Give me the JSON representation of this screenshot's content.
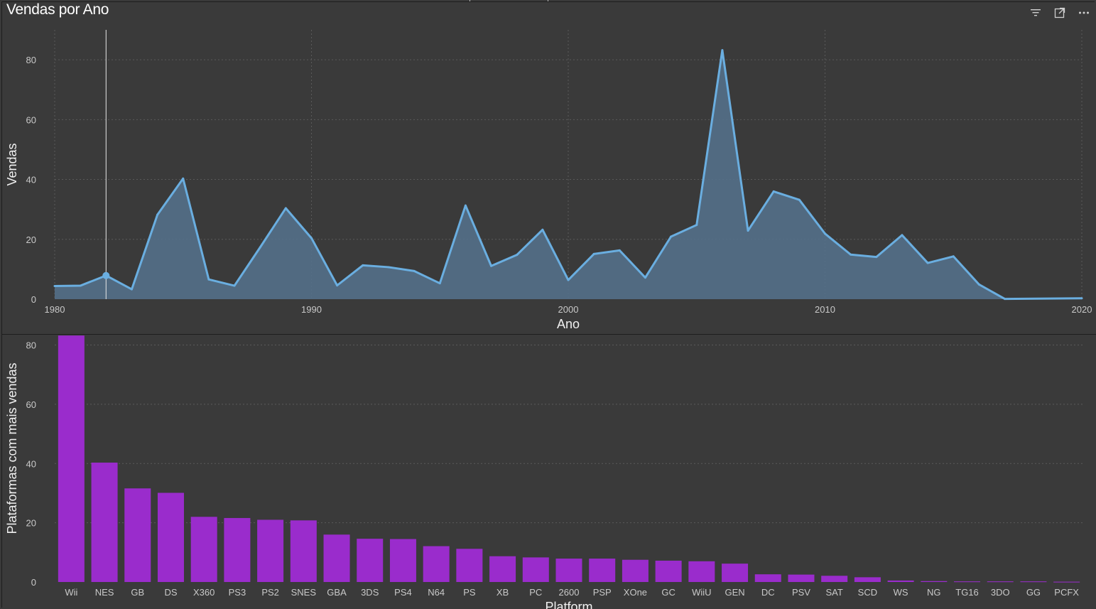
{
  "header": {
    "title": "Vendas por Ano",
    "icons": [
      "filter-icon",
      "focus-mode-icon",
      "more-options-icon"
    ]
  },
  "colors": {
    "background": "#3a3a3a",
    "line": "#6aaee0",
    "area": "#54708a",
    "bar": "#9a2ccc",
    "grid": "#5a5a5a"
  },
  "chart_data": [
    {
      "type": "area",
      "title": "Vendas por Ano",
      "xlabel": "Ano",
      "ylabel": "Vendas",
      "xlim": [
        1980,
        2020
      ],
      "ylim": [
        0,
        90
      ],
      "xticks": [
        "1980",
        "1990",
        "2000",
        "2010",
        "2020"
      ],
      "yticks": [
        "0",
        "20",
        "40",
        "60",
        "80"
      ],
      "grid": true,
      "highlight": {
        "x": 1982,
        "y": 7.9
      },
      "x": [
        1980,
        1981,
        1982,
        1983,
        1984,
        1985,
        1986,
        1987,
        1988,
        1989,
        1990,
        1991,
        1992,
        1993,
        1994,
        1995,
        1996,
        1997,
        1998,
        1999,
        2000,
        2001,
        2002,
        2003,
        2004,
        2005,
        2006,
        2007,
        2008,
        2009,
        2010,
        2011,
        2012,
        2013,
        2014,
        2015,
        2016,
        2017,
        2020
      ],
      "y": [
        4.4,
        4.5,
        7.9,
        3.3,
        28.2,
        40.3,
        6.6,
        4.5,
        17.3,
        30.4,
        20.4,
        4.6,
        11.3,
        10.7,
        9.4,
        5.3,
        31.3,
        11.1,
        14.8,
        23.2,
        6.4,
        15.1,
        16.3,
        7.2,
        20.9,
        24.8,
        83.2,
        22.9,
        36.0,
        33.2,
        21.9,
        14.9,
        14.1,
        21.4,
        12.1,
        14.3,
        4.9,
        0.1,
        0.3
      ]
    },
    {
      "type": "bar",
      "xlabel": "Platform",
      "ylabel": "Plataformas com mais vendas",
      "ylim": [
        0,
        83
      ],
      "yticks": [
        "0",
        "20",
        "40",
        "60",
        "80"
      ],
      "grid": true,
      "categories": [
        "Wii",
        "NES",
        "GB",
        "DS",
        "X360",
        "PS3",
        "PS2",
        "SNES",
        "GBA",
        "3DS",
        "PS4",
        "N64",
        "PS",
        "XB",
        "PC",
        "2600",
        "PSP",
        "XOne",
        "GC",
        "WiiU",
        "GEN",
        "DC",
        "PSV",
        "SAT",
        "SCD",
        "WS",
        "NG",
        "TG16",
        "3DO",
        "GG",
        "PCFX"
      ],
      "values": [
        83.2,
        40.3,
        31.6,
        30.1,
        22.0,
        21.6,
        21.0,
        20.8,
        16.0,
        14.6,
        14.5,
        12.1,
        11.2,
        8.7,
        8.3,
        7.9,
        7.9,
        7.5,
        7.2,
        7.0,
        6.2,
        2.6,
        2.5,
        2.1,
        1.6,
        0.5,
        0.3,
        0.2,
        0.2,
        0.2,
        0.1
      ]
    }
  ]
}
